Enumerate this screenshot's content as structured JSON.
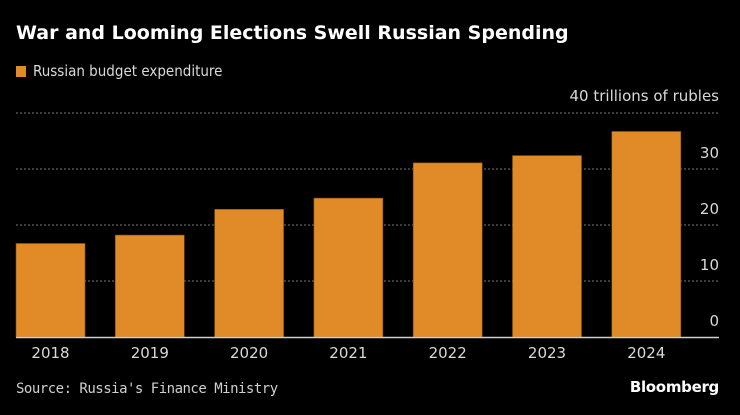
{
  "chart_data": {
    "type": "bar",
    "title": "War and Looming Elections Swell Russian Spending",
    "legend": [
      {
        "label": "Russian budget expenditure",
        "color": "#e08b27"
      }
    ],
    "legend_position": "top-left",
    "unit_label": "40 trillions of rubles",
    "categories": [
      "2018",
      "2019",
      "2020",
      "2021",
      "2022",
      "2023",
      "2024"
    ],
    "series": [
      {
        "name": "Russian budget expenditure",
        "values": [
          16.7,
          18.2,
          22.8,
          24.8,
          31.1,
          32.4,
          36.7
        ],
        "color": "#e08b27"
      }
    ],
    "xlabel": "",
    "ylabel": "trillions of rubles",
    "ylim": [
      0,
      40
    ],
    "yticks": [
      0,
      10,
      20,
      30,
      40
    ],
    "ytick_labels": [
      "0",
      "10",
      "20",
      "30",
      "40 trillions of rubles"
    ],
    "grid": true,
    "yaxis_side": "right"
  },
  "footer": {
    "source": "Source: Russia's Finance Ministry",
    "brand": "Bloomberg"
  }
}
